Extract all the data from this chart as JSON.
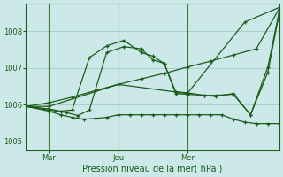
{
  "background_color": "#cce8e8",
  "grid_color": "#aacece",
  "line_color": "#1a5c1a",
  "marker_color": "#1a5c1a",
  "xlabel": "Pression niveau de la mer( hPa )",
  "ylim": [
    1004.75,
    1008.75
  ],
  "yticks": [
    1005,
    1006,
    1007,
    1008
  ],
  "xtick_labels": [
    "Mar",
    "Jeu",
    "Mer"
  ],
  "xtick_positions": [
    2,
    8,
    14
  ],
  "vline_positions": [
    2,
    8,
    14
  ],
  "xlim": [
    0,
    22
  ],
  "series_x": [
    [
      0,
      2,
      8,
      14,
      19,
      22
    ],
    [
      0,
      2,
      3.5,
      4.5,
      5.5,
      7,
      8.5,
      10,
      11,
      12,
      13,
      14,
      15.5,
      16.5,
      18,
      19.5,
      21,
      22
    ],
    [
      0,
      2,
      3,
      4,
      5.5,
      7,
      8.5,
      10,
      11,
      12,
      13,
      14,
      15.5,
      16.5,
      18,
      19.5,
      21,
      22
    ],
    [
      0,
      2,
      4,
      6,
      8,
      10,
      12,
      14,
      16,
      18,
      20,
      22
    ],
    [
      0,
      2,
      3,
      4,
      5,
      6,
      7,
      8,
      9,
      10,
      11,
      12,
      13,
      14,
      15,
      16,
      17,
      18,
      19,
      20,
      21,
      22
    ]
  ],
  "series_y": [
    [
      1005.95,
      1005.95,
      1006.55,
      1006.3,
      1008.25,
      1008.65
    ],
    [
      1005.95,
      1005.85,
      1005.78,
      1005.7,
      1005.85,
      1007.42,
      1007.58,
      1007.52,
      1007.22,
      1007.12,
      1006.3,
      1006.28,
      1006.25,
      1006.25,
      1006.28,
      1005.72,
      1006.88,
      1008.5
    ],
    [
      1005.95,
      1005.88,
      1005.82,
      1005.85,
      1007.28,
      1007.6,
      1007.75,
      1007.42,
      1007.32,
      1007.12,
      1006.35,
      1006.32,
      1006.25,
      1006.22,
      1006.3,
      1005.72,
      1007.02,
      1008.55
    ],
    [
      1005.95,
      1006.05,
      1006.2,
      1006.38,
      1006.55,
      1006.7,
      1006.85,
      1007.02,
      1007.18,
      1007.35,
      1007.52,
      1008.62
    ],
    [
      1005.95,
      1005.82,
      1005.72,
      1005.65,
      1005.6,
      1005.62,
      1005.65,
      1005.72,
      1005.72,
      1005.72,
      1005.72,
      1005.72,
      1005.72,
      1005.72,
      1005.72,
      1005.72,
      1005.72,
      1005.6,
      1005.52,
      1005.48,
      1005.48,
      1005.48
    ]
  ]
}
